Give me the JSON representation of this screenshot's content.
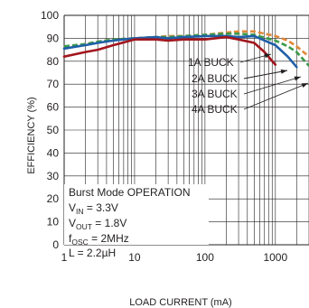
{
  "chart_data": {
    "type": "line",
    "xlabel": "LOAD CURRENT (mA)",
    "ylabel": "EFFICIENCY (%)",
    "x_scale": "log",
    "xlim": [
      1,
      3000
    ],
    "ylim": [
      0,
      100
    ],
    "grid": true,
    "x_ticks": [
      {
        "value": 1,
        "label": "1"
      },
      {
        "value": 10,
        "label": "10"
      },
      {
        "value": 100,
        "label": "100"
      },
      {
        "value": 1000,
        "label": "1000"
      }
    ],
    "y_ticks": [
      0,
      10,
      20,
      30,
      40,
      50,
      60,
      70,
      80,
      90,
      100
    ],
    "series": [
      {
        "name": "1A BUCK",
        "color": "#a3161d",
        "dash": "solid",
        "x": [
          1,
          2,
          3,
          5,
          10,
          20,
          30,
          50,
          100,
          200,
          300,
          500,
          700,
          1000
        ],
        "y": [
          82,
          84,
          85,
          87,
          89.5,
          89.5,
          89,
          89.5,
          89.5,
          90.5,
          89.5,
          88,
          84,
          78.5
        ]
      },
      {
        "name": "2A BUCK",
        "color": "#1f5fa8",
        "dash": "solid",
        "x": [
          1,
          2,
          3,
          5,
          10,
          20,
          30,
          50,
          100,
          200,
          300,
          500,
          1000,
          1500,
          2000
        ],
        "y": [
          85.5,
          87,
          88,
          89,
          90,
          90.5,
          90,
          90.5,
          91,
          91,
          90.5,
          91,
          87,
          82,
          77.5
        ]
      },
      {
        "name": "3A BUCK",
        "color": "#3a9a4a",
        "dash": "dashed",
        "x": [
          1,
          2,
          3,
          5,
          10,
          20,
          30,
          50,
          100,
          200,
          300,
          500,
          1000,
          1500,
          2000,
          3000
        ],
        "y": [
          86.5,
          87.5,
          88.5,
          89.5,
          90,
          90.5,
          90.5,
          91,
          91.5,
          92,
          92,
          91.5,
          89,
          86.5,
          84,
          78
        ]
      },
      {
        "name": "4A BUCK",
        "color": "#e1893a",
        "dash": "dashed",
        "x": [
          1,
          2,
          3,
          5,
          10,
          20,
          30,
          50,
          100,
          200,
          300,
          500,
          1000,
          1500,
          2000,
          3000
        ],
        "y": [
          86,
          87.5,
          88.5,
          89.5,
          90,
          90.5,
          91,
          91,
          91.5,
          92.5,
          93,
          93,
          91,
          89,
          86.5,
          82
        ]
      }
    ],
    "conditions": {
      "mode": "Burst Mode OPERATION",
      "vin_main": "V",
      "vin_sub": "IN",
      "vin_val": " = 3.3V",
      "vout_main": "V",
      "vout_sub": "OUT",
      "vout_val": " = 1.8V",
      "fosc_main": "f",
      "fosc_sub": "OSC",
      "fosc_val": " = 2MHz",
      "l_line": "L = 2.2µH"
    }
  }
}
